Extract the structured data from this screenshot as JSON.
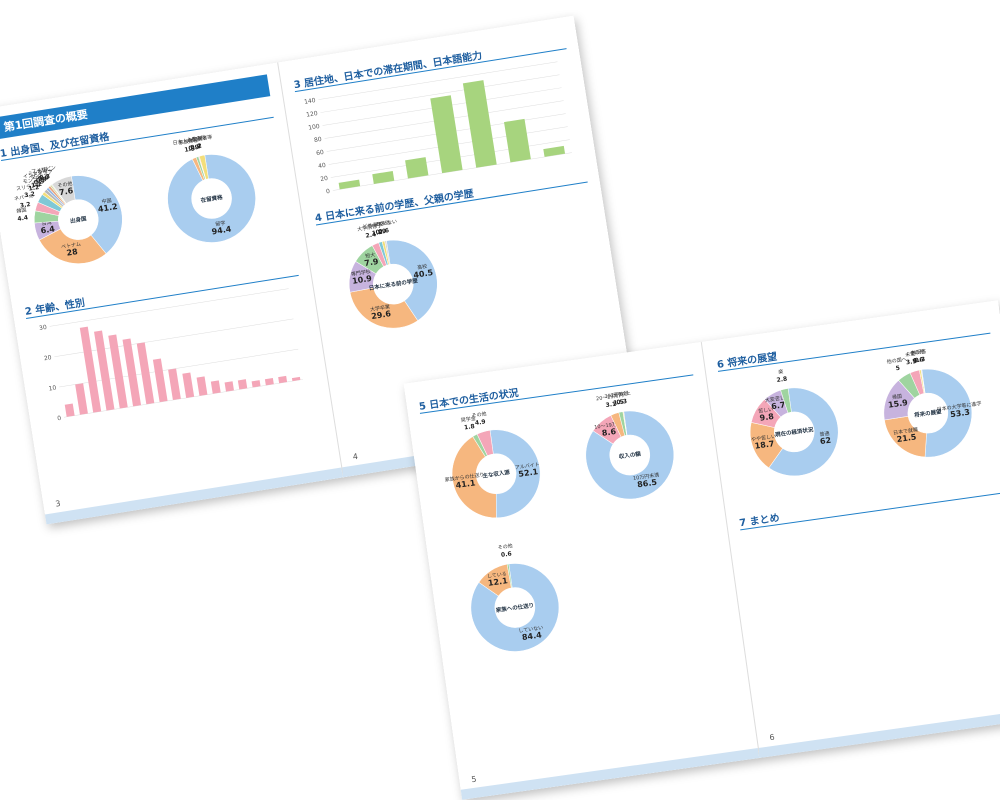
{
  "pages": [
    {
      "number": "3",
      "banner": "第1回調査の概要",
      "sections": [
        {
          "title": "1 出身国、及び在留資格",
          "charts": [
            {
              "type": "pie",
              "center": "出身国",
              "labels": [
                "中国",
                "ベトナム",
                "台湾",
                "韓国",
                "ネパール",
                "スリランカ",
                "モンゴル",
                "タイ",
                "インドネシア",
                "ミャンマー",
                "米国",
                "フィリピン",
                "その他"
              ],
              "values": [
                41.2,
                28.0,
                6.4,
                4.4,
                3.2,
                3.2,
                1.2,
                1.2,
                0.9,
                0.9,
                0.6,
                0.3,
                7.6
              ],
              "colors": [
                "#a9cdef",
                "#f6b77f",
                "#c7b3de",
                "#9fd4a0",
                "#f4a6b8",
                "#7fc8d6",
                "#f3de7a",
                "#b8b8b8",
                "#8fb1e0",
                "#e7a37c",
                "#d5d5a0",
                "#a0c8a0",
                "#d8d8d8"
              ]
            },
            {
              "type": "pie",
              "center": "在留資格",
              "labels": [
                "留学",
                "家族滞在",
                "日本人の配偶者等",
                "永住者",
                "その他"
              ],
              "values": [
                94.4,
                1.5,
                0.9,
                0.3,
                2.0
              ],
              "colors": [
                "#a9cdef",
                "#f6b77f",
                "#9fd4a0",
                "#f4a6b8",
                "#f3de7a"
              ]
            }
          ]
        },
        {
          "title": "2 年齢、性別",
          "charts": [
            {
              "type": "bar",
              "values": [
                4,
                10,
                28,
                26,
                24,
                22,
                20,
                14,
                10,
                8,
                6,
                4,
                3,
                3,
                2,
                2,
                2,
                1
              ],
              "color": "#f4a6b8",
              "ylim": [
                0,
                30
              ],
              "yticks": [
                0,
                10,
                20,
                30
              ]
            }
          ]
        }
      ]
    },
    {
      "number": "4",
      "banner": null,
      "sections": [
        {
          "title": "3 居住地、日本での滞在期間、日本語能力",
          "charts": [
            {
              "type": "bar",
              "values": [
                10,
                15,
                28,
                115,
                130,
                62,
                12
              ],
              "color": "#a7d47e",
              "ylim": [
                0,
                140
              ],
              "yticks": [
                0,
                20,
                40,
                60,
                80,
                100,
                120,
                140
              ]
            }
          ]
        },
        {
          "title": "4 日本に来る前の学歴、父親の学歴",
          "charts": [
            {
              "type": "pie",
              "center": "日本に来る前の学歴",
              "labels": [
                "高校",
                "大学卒業",
                "専門学校",
                "短大",
                "大学院修了",
                "中学校",
                "どちらでもない",
                "その他"
              ],
              "values": [
                40.5,
                29.6,
                10.9,
                7.9,
                2.4,
                1.2,
                0.9,
                0.6
              ],
              "colors": [
                "#a9cdef",
                "#f6b77f",
                "#c7b3de",
                "#9fd4a0",
                "#f4a6b8",
                "#7fc8d6",
                "#f3de7a",
                "#d8d8d8"
              ]
            }
          ]
        }
      ]
    },
    {
      "number": "5",
      "banner": null,
      "sections": [
        {
          "title": "5 日本での生活の状況",
          "charts": [
            {
              "type": "pie",
              "center": "主な収入源",
              "labels": [
                "アルバイト",
                "家族からの仕送り",
                "奨学金",
                "その他"
              ],
              "values": [
                52.1,
                41.1,
                1.8,
                4.9
              ],
              "colors": [
                "#a9cdef",
                "#f6b77f",
                "#9fd4a0",
                "#f4a6b8"
              ]
            },
            {
              "type": "pie",
              "center": "収入の額",
              "labels": [
                "10万円未満",
                "10〜19万円",
                "20〜29万円",
                "30万円以上",
                "その他"
              ],
              "values": [
                86.5,
                8.6,
                3.1,
                1.5,
                0.3
              ],
              "colors": [
                "#a9cdef",
                "#f4a6b8",
                "#f6b77f",
                "#9fd4a0",
                "#f3de7a"
              ]
            },
            {
              "type": "pie",
              "center": "家族への仕送り",
              "labels": [
                "していない",
                "している",
                "その他"
              ],
              "values": [
                84.4,
                12.1,
                0.6
              ],
              "colors": [
                "#a9cdef",
                "#f6b77f",
                "#9fd4a0"
              ]
            }
          ]
        }
      ]
    },
    {
      "number": "6",
      "banner": null,
      "sections": [
        {
          "title": "6 将来の展望",
          "charts": [
            {
              "type": "pie",
              "center": "現在の経済状況",
              "labels": [
                "普通",
                "やや苦しい",
                "苦しい",
                "大変苦しい",
                "楽"
              ],
              "values": [
                62.0,
                18.7,
                9.8,
                6.7,
                2.8
              ],
              "colors": [
                "#a9cdef",
                "#f6b77f",
                "#f4a6b8",
                "#c7b3de",
                "#9fd4a0"
              ]
            },
            {
              "type": "pie",
              "center": "将来の展望",
              "labels": [
                "日本の大学等に進学",
                "日本で就職",
                "帰国",
                "他の国へ",
                "未定",
                "その他",
                "無回答"
              ],
              "values": [
                53.3,
                21.5,
                15.9,
                5.0,
                3.5,
                0.6,
                0.3
              ],
              "colors": [
                "#a9cdef",
                "#f6b77f",
                "#c7b3de",
                "#9fd4a0",
                "#f4a6b8",
                "#f3de7a",
                "#d8d8d8"
              ]
            }
          ]
        },
        {
          "title": "7 まとめ",
          "charts": []
        }
      ]
    }
  ]
}
